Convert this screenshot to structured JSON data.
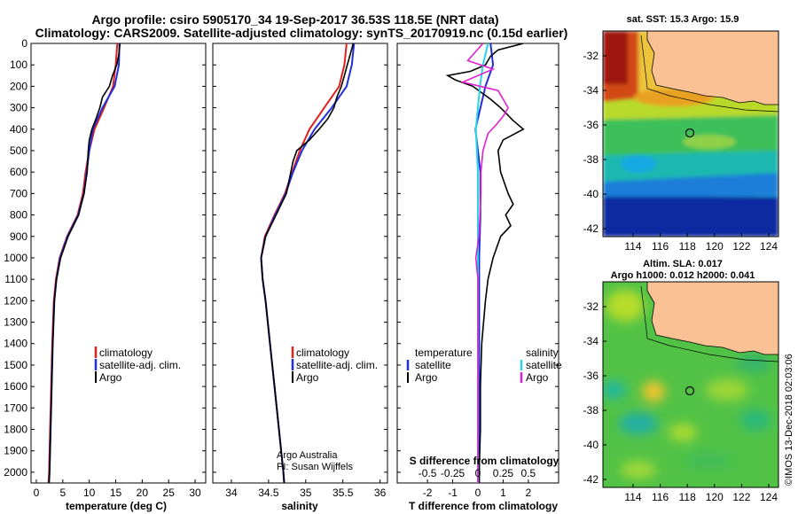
{
  "header": {
    "line1": "Argo profile: csiro 5905170_34 19-Sep-2017 36.53S 118.5E (NRT data)",
    "line2": "Climatology: CARS2009. Satellite-adjusted climatology: synTS_20170919.nc (0.15d earlier)"
  },
  "credits": {
    "argo": "Argo Australia",
    "pi": "PI: Susan Wijffels",
    "imos": "©IMOS 13-Dec-2018 02:03:06"
  },
  "colors": {
    "climatology": "#e0201c",
    "satellite": "#1f2fe0",
    "argo": "#000000",
    "sal_satellite": "#28d4e6",
    "sal_argo": "#e020d0"
  },
  "chart_data": [
    {
      "type": "line",
      "panel": "temperature",
      "xlabel": "temperature (deg C)",
      "ylim": [
        2050,
        0
      ],
      "xlim": [
        -1,
        32
      ],
      "ytick_labels": [
        "0",
        "100",
        "200",
        "300",
        "400",
        "500",
        "600",
        "700",
        "800",
        "900",
        "1000",
        "1100",
        "1200",
        "1300",
        "1400",
        "1500",
        "1600",
        "1700",
        "1800",
        "1900",
        "2000"
      ],
      "xtick_labels": [
        "0",
        "5",
        "10",
        "15",
        "20",
        "25",
        "30"
      ],
      "legend": [
        "climatology",
        "satellite-adj. clim.",
        "Argo"
      ],
      "series": [
        {
          "name": "climatology",
          "depth": [
            0,
            100,
            200,
            300,
            400,
            500,
            600,
            700,
            800,
            900,
            1000,
            1100,
            1200,
            1400,
            1600,
            1800,
            2000,
            2050
          ],
          "values": [
            15.3,
            15.0,
            14.5,
            12.8,
            11.0,
            10.0,
            9.3,
            8.8,
            7.8,
            5.8,
            4.4,
            3.7,
            3.3,
            3.0,
            2.8,
            2.6,
            2.4,
            2.3
          ]
        },
        {
          "name": "satellite-adj. clim.",
          "depth": [
            0,
            100,
            200,
            300,
            400,
            500,
            600,
            700,
            800,
            900,
            1000,
            1100,
            1200,
            1400,
            1600,
            1800,
            2000,
            2050
          ],
          "values": [
            15.7,
            15.6,
            14.8,
            12.5,
            10.7,
            10.0,
            9.5,
            9.0,
            7.9,
            5.9,
            4.5,
            3.8,
            3.4,
            3.1,
            2.9,
            2.7,
            2.5,
            2.4
          ]
        },
        {
          "name": "Argo",
          "depth": [
            0,
            50,
            100,
            150,
            200,
            250,
            300,
            350,
            400,
            450,
            500,
            600,
            700,
            800,
            900,
            1000,
            1100,
            1200,
            1400,
            1600,
            1800,
            2000,
            2050
          ],
          "values": [
            15.8,
            15.6,
            15.2,
            14.4,
            13.8,
            12.5,
            12.0,
            11.3,
            10.5,
            10.0,
            9.8,
            9.6,
            9.0,
            8.0,
            6.0,
            4.6,
            3.8,
            3.4,
            3.1,
            2.9,
            2.7,
            2.5,
            2.4
          ]
        }
      ]
    },
    {
      "type": "line",
      "panel": "salinity",
      "xlabel": "salinity",
      "ylim": [
        2050,
        0
      ],
      "xlim": [
        33.75,
        36.1
      ],
      "xtick_labels": [
        "34",
        "34.5",
        "35",
        "35.5",
        "36"
      ],
      "legend": [
        "climatology",
        "satellite-adj. clim.",
        "Argo"
      ],
      "series": [
        {
          "name": "climatology",
          "depth": [
            0,
            100,
            200,
            300,
            400,
            500,
            600,
            700,
            800,
            900,
            1000,
            1100,
            1200,
            1400,
            1600,
            1800,
            2000,
            2050
          ],
          "values": [
            35.55,
            35.52,
            35.45,
            35.25,
            35.05,
            34.92,
            34.82,
            34.72,
            34.58,
            34.45,
            34.4,
            34.42,
            34.46,
            34.52,
            34.58,
            34.64,
            34.7,
            34.71
          ]
        },
        {
          "name": "satellite-adj. clim.",
          "depth": [
            0,
            100,
            200,
            300,
            400,
            500,
            600,
            700,
            800,
            900,
            1000,
            1100,
            1200,
            1400,
            1600,
            1800,
            2000,
            2050
          ],
          "values": [
            35.65,
            35.62,
            35.55,
            35.35,
            35.12,
            34.95,
            34.83,
            34.73,
            34.59,
            34.46,
            34.4,
            34.42,
            34.46,
            34.52,
            34.58,
            34.64,
            34.7,
            34.71
          ]
        },
        {
          "name": "Argo",
          "depth": [
            0,
            50,
            100,
            150,
            200,
            250,
            300,
            350,
            400,
            450,
            500,
            550,
            600,
            700,
            800,
            900,
            1000,
            1100,
            1200,
            1400,
            1600,
            1800,
            2000,
            2050
          ],
          "values": [
            35.64,
            35.6,
            35.56,
            35.52,
            35.48,
            35.42,
            35.38,
            35.3,
            35.18,
            35.05,
            34.88,
            34.83,
            34.8,
            34.74,
            34.6,
            34.46,
            34.4,
            34.42,
            34.46,
            34.52,
            34.58,
            34.64,
            34.7,
            34.71
          ]
        }
      ]
    },
    {
      "type": "line",
      "panel": "difference",
      "xlabel": "T difference from climatology",
      "xlabel2": "S difference from climatology",
      "ylim": [
        2050,
        0
      ],
      "xlim": [
        -3.2,
        3.2
      ],
      "xtick_labels": [
        "-2",
        "-1",
        "0",
        "1",
        "2"
      ],
      "s_tick_labels": [
        "-0.5",
        "-0.25",
        "0",
        "0.25",
        "0.5"
      ],
      "legend_left": [
        "temperature",
        "satellite",
        "Argo"
      ],
      "legend_right": [
        "salinity",
        "satellite",
        "Argo"
      ],
      "series": [
        {
          "name": "temperature satellite",
          "depth": [
            0,
            100,
            200,
            400,
            600,
            800,
            1000,
            1200,
            1400,
            1600,
            1800,
            2000,
            2050
          ],
          "values": [
            0.5,
            0.6,
            0.3,
            -0.1,
            0.1,
            0.1,
            0.05,
            0.05,
            0.05,
            0.05,
            0.05,
            0.05,
            0.05
          ]
        },
        {
          "name": "temperature Argo",
          "depth": [
            0,
            30,
            60,
            100,
            130,
            150,
            170,
            200,
            260,
            300,
            360,
            400,
            450,
            500,
            600,
            700,
            750,
            800,
            850,
            900,
            1000,
            1100,
            1200,
            1400,
            1600,
            1800,
            2000,
            2050
          ],
          "values": [
            1.8,
            0.8,
            0.5,
            0.3,
            -0.3,
            -1.2,
            -0.9,
            -0.2,
            0.5,
            0.9,
            1.4,
            1.8,
            1.0,
            0.8,
            0.9,
            1.2,
            1.4,
            1.1,
            1.3,
            0.9,
            0.6,
            0.4,
            0.3,
            0.15,
            0.1,
            0.1,
            0.05,
            0.05
          ]
        },
        {
          "name": "salinity satellite",
          "depth": [
            0,
            100,
            200,
            300,
            400,
            600,
            800,
            1000,
            1200,
            1400,
            1600,
            1800,
            2000,
            2050
          ],
          "values": [
            0.1,
            0.05,
            0.02,
            0.0,
            -0.02,
            0.0,
            0.0,
            0.0,
            0.0,
            0.0,
            0.0,
            0.0,
            0.0,
            0.0
          ]
        },
        {
          "name": "salinity Argo",
          "depth": [
            0,
            80,
            120,
            180,
            220,
            300,
            340,
            380,
            420,
            500,
            600,
            700,
            800,
            900,
            1000,
            1100,
            1200,
            1400,
            1600,
            1800,
            2000,
            2050
          ],
          "values": [
            0.05,
            -0.1,
            0.15,
            -0.15,
            0.2,
            0.3,
            0.25,
            0.18,
            0.1,
            0.05,
            0.03,
            0.03,
            0.02,
            0.01,
            -0.02,
            0.0,
            0.0,
            0.0,
            0.0,
            0.0,
            0.0,
            0.0
          ]
        }
      ]
    }
  ],
  "maps": {
    "top": {
      "title": "sat. SST: 15.3 Argo: 15.9",
      "lat_labels": [
        "-32",
        "-34",
        "-36",
        "-38",
        "-40",
        "-42"
      ],
      "lon_labels": [
        "114",
        "116",
        "118",
        "120",
        "122",
        "124"
      ]
    },
    "bottom": {
      "title1": "Altim. SLA: 0.017",
      "title2": "Argo h1000: 0.012 h2000: 0.041",
      "lat_labels": [
        "-32",
        "-34",
        "-36",
        "-38",
        "-40",
        "-42"
      ],
      "lon_labels": [
        "114",
        "116",
        "118",
        "120",
        "122",
        "124"
      ]
    }
  }
}
